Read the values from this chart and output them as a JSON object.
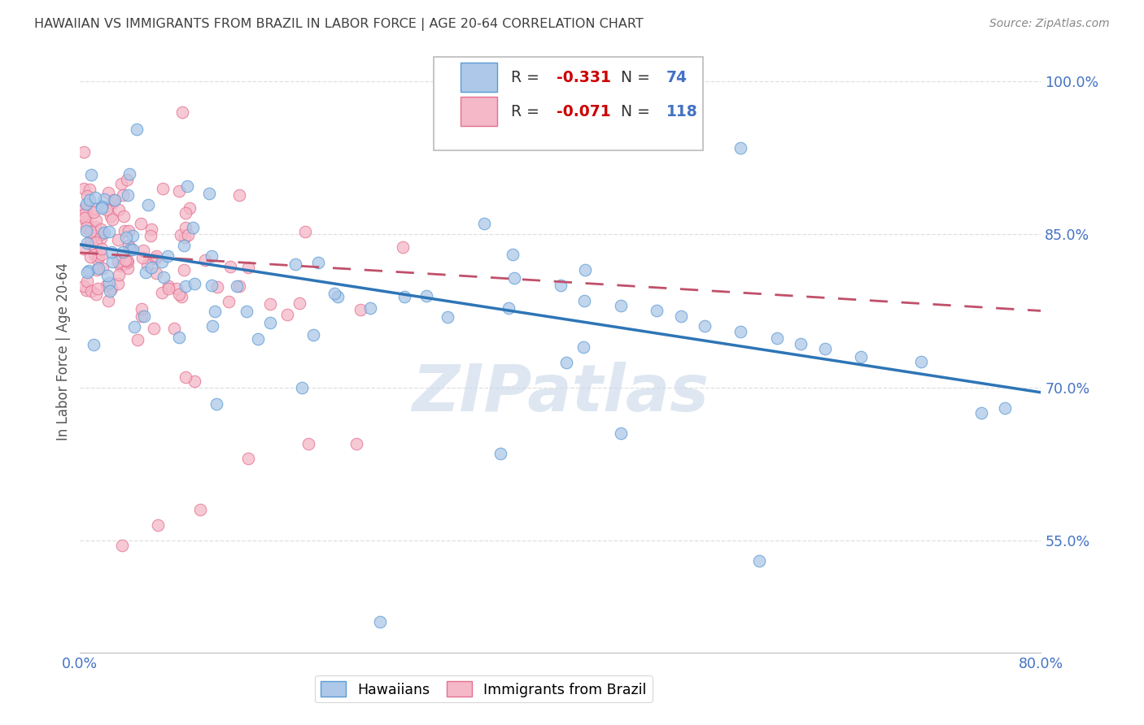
{
  "title": "HAWAIIAN VS IMMIGRANTS FROM BRAZIL IN LABOR FORCE | AGE 20-64 CORRELATION CHART",
  "source": "Source: ZipAtlas.com",
  "ylabel": "In Labor Force | Age 20-64",
  "x_min": 0.0,
  "x_max": 0.8,
  "y_min": 0.44,
  "y_max": 1.03,
  "y_ticks": [
    0.55,
    0.7,
    0.85,
    1.0
  ],
  "y_tick_labels": [
    "55.0%",
    "70.0%",
    "85.0%",
    "100.0%"
  ],
  "x_ticks": [
    0.0,
    0.1,
    0.2,
    0.3,
    0.4,
    0.5,
    0.6,
    0.7,
    0.8
  ],
  "x_tick_labels": [
    "0.0%",
    "",
    "",
    "",
    "",
    "",
    "",
    "",
    "80.0%"
  ],
  "blue_R": -0.331,
  "blue_N": 74,
  "pink_R": -0.071,
  "pink_N": 118,
  "blue_color": "#adc8e8",
  "blue_edge_color": "#5b9bd5",
  "blue_line_color": "#2e75b6",
  "pink_color": "#f4b8c8",
  "pink_edge_color": "#e47090",
  "pink_line_color": "#c0506a",
  "legend_R_color": "#cc0000",
  "legend_N_color": "#4472c4",
  "background_color": "#ffffff",
  "grid_color": "#d8d8d8",
  "title_color": "#404040",
  "axis_label_color": "#4472c4",
  "watermark_color": "#c8d8e8",
  "blue_line_y0": 0.84,
  "blue_line_y1": 0.695,
  "pink_line_y0": 0.832,
  "pink_line_y1": 0.775
}
